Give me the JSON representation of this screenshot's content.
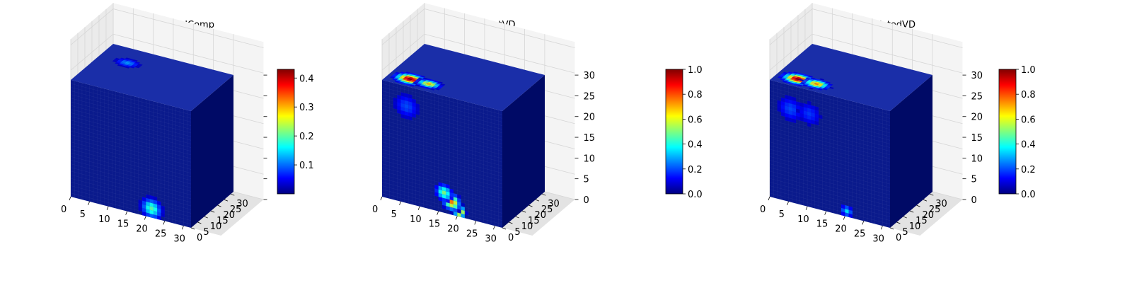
{
  "colors": {
    "jet": [
      "#00007f",
      "#0000ff",
      "#007fff",
      "#00ffff",
      "#7fff7f",
      "#ffff00",
      "#ff7f00",
      "#ff0000",
      "#7f0000"
    ],
    "pane_back": "#f4f4f4",
    "pane_side": "#ebebeb",
    "pane_floor": "#e3e3e3",
    "grid_line": "#d6d6d6",
    "cube_front": "#0a1a8c",
    "cube_top": "#1a2ea8",
    "cube_side": "#000a66",
    "voxel_edge": "rgba(255,255,255,0.07)"
  },
  "chart_data": [
    {
      "type": "voxel-3d",
      "title": "InitialComp",
      "x_ticks": [
        "0",
        "5",
        "10",
        "15",
        "20",
        "25",
        "30"
      ],
      "y_ticks": [
        "0",
        "5",
        "10",
        "15",
        "20",
        "25",
        "30"
      ],
      "z_ticks": [],
      "grid": true,
      "colorbar": {
        "vmin": 0.0,
        "vmax": 0.43,
        "cmap": "jet",
        "ticks": [
          "0.1",
          "0.2",
          "0.3",
          "0.4"
        ],
        "tick_values": [
          0.1,
          0.2,
          0.3,
          0.4
        ]
      },
      "blobs": [
        {
          "face": "front",
          "u": 22,
          "v": 1,
          "value": 0.42,
          "spread": 1.0
        },
        {
          "face": "front",
          "u": 21,
          "v": 2,
          "value": 0.2,
          "spread": 2.2
        },
        {
          "face": "top",
          "u": 7,
          "v": 10,
          "value": 0.12,
          "spread": 2.5
        }
      ]
    },
    {
      "type": "voxel-3d",
      "title": "TargetVD",
      "x_ticks": [
        "0",
        "5",
        "10",
        "15",
        "20",
        "25",
        "30"
      ],
      "y_ticks": [
        "0",
        "5",
        "10",
        "15",
        "20",
        "25",
        "30"
      ],
      "z_ticks": [
        "0",
        "5",
        "10",
        "15",
        "20",
        "25",
        "30"
      ],
      "grid": true,
      "colorbar": {
        "vmin": 0.0,
        "vmax": 1.0,
        "cmap": "jet",
        "ticks": [
          "0.0",
          "0.2",
          "0.4",
          "0.6",
          "0.8",
          "1.0"
        ],
        "tick_values": [
          0.0,
          0.2,
          0.4,
          0.6,
          0.8,
          1.0
        ]
      },
      "blobs": [
        {
          "face": "front",
          "u": 20,
          "v": 1,
          "value": 1.0,
          "spread": 1.2
        },
        {
          "face": "front",
          "u": 18,
          "v": 3,
          "value": 0.75,
          "spread": 1.8
        },
        {
          "face": "front",
          "u": 16,
          "v": 5,
          "value": 0.5,
          "spread": 1.8
        },
        {
          "face": "top",
          "u": 5,
          "v": 26,
          "value": 1.0,
          "spread": 2.8
        },
        {
          "face": "top",
          "u": 10,
          "v": 26,
          "value": 0.7,
          "spread": 2.2
        },
        {
          "face": "front",
          "u": 6,
          "v": 26,
          "value": 0.2,
          "spread": 3.0
        }
      ]
    },
    {
      "type": "voxel-3d",
      "title": "PredictedVD",
      "x_ticks": [
        "0",
        "5",
        "10",
        "15",
        "20",
        "25",
        "30"
      ],
      "y_ticks": [
        "0",
        "5",
        "10",
        "15",
        "20",
        "25",
        "30"
      ],
      "z_ticks": [
        "0",
        "5",
        "10",
        "15",
        "20",
        "25",
        "30"
      ],
      "grid": true,
      "colorbar": {
        "vmin": 0.0,
        "vmax": 1.0,
        "cmap": "jet",
        "ticks": [
          "0.0",
          "0.2",
          "0.4",
          "0.6",
          "0.8",
          "1.0"
        ],
        "tick_values": [
          0.0,
          0.2,
          0.4,
          0.6,
          0.8,
          1.0
        ]
      },
      "blobs": [
        {
          "face": "front",
          "u": 20,
          "v": 1,
          "value": 0.35,
          "spread": 1.3
        },
        {
          "face": "top",
          "u": 5,
          "v": 26,
          "value": 1.0,
          "spread": 2.8
        },
        {
          "face": "top",
          "u": 10,
          "v": 26,
          "value": 0.75,
          "spread": 2.4
        },
        {
          "face": "front",
          "u": 5,
          "v": 25,
          "value": 0.2,
          "spread": 3.0
        },
        {
          "face": "front",
          "u": 10,
          "v": 25,
          "value": 0.18,
          "spread": 2.8
        }
      ]
    }
  ]
}
